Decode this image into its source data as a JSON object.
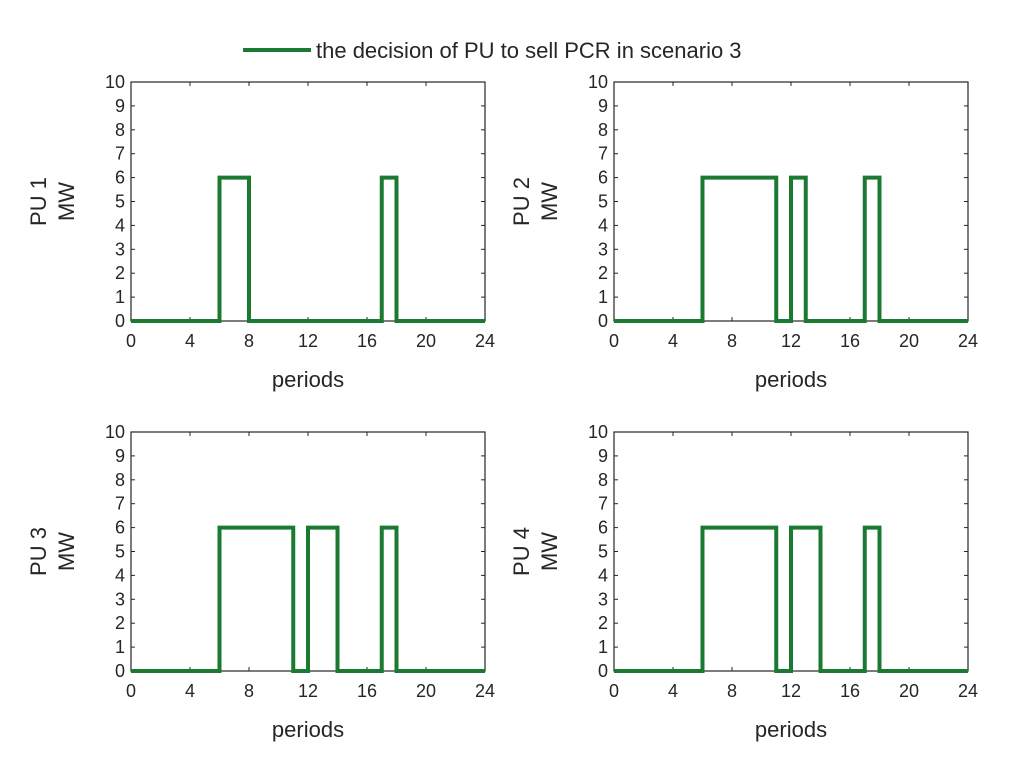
{
  "legend": {
    "label": "the decision of PU to sell PCR in scenario 3",
    "color": "#1a7a32"
  },
  "chart_data": [
    {
      "type": "line",
      "step": true,
      "ylabel_top": "PU 1",
      "ylabel_bottom": "MW",
      "xlabel": "periods",
      "xlim": [
        0,
        24
      ],
      "ylim": [
        0,
        10
      ],
      "xticks": [
        "0",
        "4",
        "8",
        "12",
        "16",
        "20",
        "24"
      ],
      "yticks": [
        "0",
        "1",
        "2",
        "3",
        "4",
        "5",
        "6",
        "7",
        "8",
        "9",
        "10"
      ],
      "series": [
        {
          "name": "the decision of PU to sell PCR in scenario 3",
          "x": [
            0,
            6,
            6,
            8,
            8,
            17,
            17,
            18,
            18,
            24
          ],
          "y": [
            0,
            0,
            6,
            6,
            0,
            0,
            6,
            6,
            0,
            0
          ]
        }
      ]
    },
    {
      "type": "line",
      "step": true,
      "ylabel_top": "PU 2",
      "ylabel_bottom": "MW",
      "xlabel": "periods",
      "xlim": [
        0,
        24
      ],
      "ylim": [
        0,
        10
      ],
      "xticks": [
        "0",
        "4",
        "8",
        "12",
        "16",
        "20",
        "24"
      ],
      "yticks": [
        "0",
        "1",
        "2",
        "3",
        "4",
        "5",
        "6",
        "7",
        "8",
        "9",
        "10"
      ],
      "series": [
        {
          "name": "the decision of PU to sell PCR in scenario 3",
          "x": [
            0,
            6,
            6,
            11,
            11,
            12,
            12,
            13,
            13,
            17,
            17,
            18,
            18,
            24
          ],
          "y": [
            0,
            0,
            6,
            6,
            0,
            0,
            6,
            6,
            0,
            0,
            6,
            6,
            0,
            0
          ]
        }
      ]
    },
    {
      "type": "line",
      "step": true,
      "ylabel_top": "PU 3",
      "ylabel_bottom": "MW",
      "xlabel": "periods",
      "xlim": [
        0,
        24
      ],
      "ylim": [
        0,
        10
      ],
      "xticks": [
        "0",
        "4",
        "8",
        "12",
        "16",
        "20",
        "24"
      ],
      "yticks": [
        "0",
        "1",
        "2",
        "3",
        "4",
        "5",
        "6",
        "7",
        "8",
        "9",
        "10"
      ],
      "series": [
        {
          "name": "the decision of PU to sell PCR in scenario 3",
          "x": [
            0,
            6,
            6,
            11,
            11,
            12,
            12,
            14,
            14,
            17,
            17,
            18,
            18,
            24
          ],
          "y": [
            0,
            0,
            6,
            6,
            0,
            0,
            6,
            6,
            0,
            0,
            6,
            6,
            0,
            0
          ]
        }
      ]
    },
    {
      "type": "line",
      "step": true,
      "ylabel_top": "PU 4",
      "ylabel_bottom": "MW",
      "xlabel": "periods",
      "xlim": [
        0,
        24
      ],
      "ylim": [
        0,
        10
      ],
      "xticks": [
        "0",
        "4",
        "8",
        "12",
        "16",
        "20",
        "24"
      ],
      "yticks": [
        "0",
        "1",
        "2",
        "3",
        "4",
        "5",
        "6",
        "7",
        "8",
        "9",
        "10"
      ],
      "series": [
        {
          "name": "the decision of PU to sell PCR in scenario 3",
          "x": [
            0,
            6,
            6,
            11,
            11,
            12,
            12,
            14,
            14,
            17,
            17,
            18,
            18,
            24
          ],
          "y": [
            0,
            0,
            6,
            6,
            0,
            0,
            6,
            6,
            0,
            0,
            6,
            6,
            0,
            0
          ]
        }
      ]
    }
  ]
}
